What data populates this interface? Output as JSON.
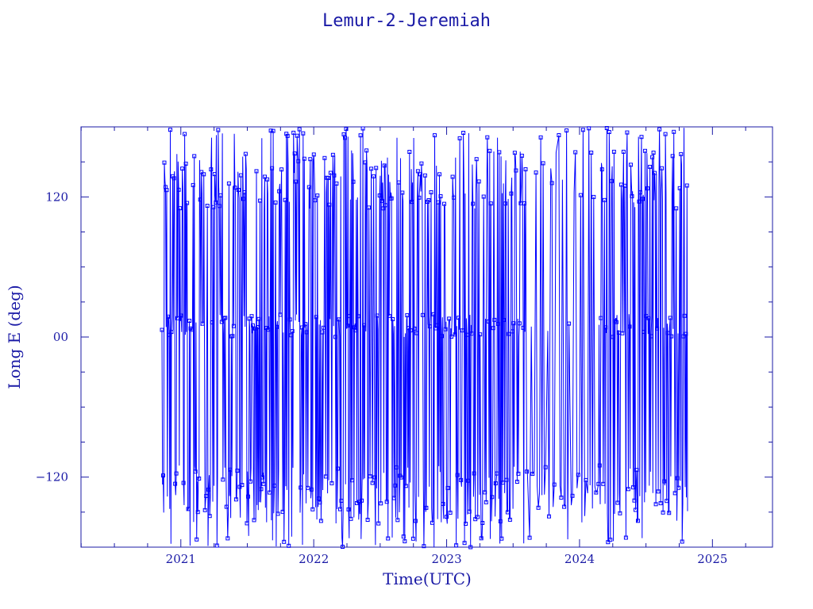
{
  "chart_data": {
    "type": "line",
    "title": "Lemur-2-Jeremiah",
    "xlabel": "Time(UTC)",
    "ylabel": "Long E (deg)",
    "xlim": [
      "2020-04-01",
      "2025-06-15"
    ],
    "ylim": [
      -180,
      180
    ],
    "x_ticks": [
      2021,
      2022,
      2023,
      2024,
      2025
    ],
    "y_ticks": [
      -120,
      0,
      120
    ],
    "y_tick_labels": [
      "−120",
      "00",
      "120"
    ],
    "series": [
      {
        "marker": "square",
        "color": "#0000ff",
        "x_start": "2020-11-10",
        "x_end": "2024-10-25",
        "bands_deg": [
          {
            "center": 135,
            "spread": 25
          },
          {
            "center": 10,
            "spread": 10
          },
          {
            "center": -135,
            "spread": 25
          }
        ],
        "sparse_interval": [
          "2023-08-10",
          "2024-02-20"
        ]
      }
    ],
    "grid": false,
    "legend": "none"
  }
}
